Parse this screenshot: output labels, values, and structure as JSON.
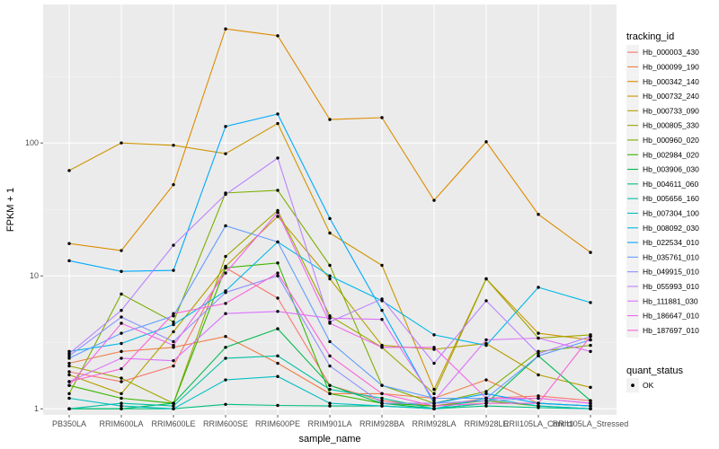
{
  "chart_data": {
    "type": "line",
    "xlabel": "sample_name",
    "ylabel": "FPKM + 1",
    "y_scale": "log10",
    "ylim": [
      0.9,
      1100
    ],
    "y_ticks": [
      1,
      10,
      100
    ],
    "y_tick_labels": [
      "1",
      "10",
      "100"
    ],
    "grid": true,
    "legend_position": "right",
    "categories": [
      "PB350LA",
      "RRIM600LA",
      "RRIM600LE",
      "RRIM600SE",
      "RRIM600PE",
      "RRIM901LA",
      "RRIM928BA",
      "RRIM928LA",
      "RRIM928LE",
      "RRII105LA_Control",
      "RRII105LA_Stressed"
    ],
    "legend_title": "tracking_id",
    "shape_legend_title": "quant_status",
    "shape_legend_items": [
      "OK"
    ],
    "series": [
      {
        "name": "Hb_000003_430",
        "color": "#F8766D",
        "values": [
          1.9,
          1.6,
          2.1,
          11.5,
          6.8,
          1.5,
          1.15,
          1.05,
          1.2,
          1.25,
          1.15
        ]
      },
      {
        "name": "Hb_000099_190",
        "color": "#EF7F49",
        "values": [
          2.2,
          2.7,
          2.9,
          3.5,
          2.2,
          1.3,
          1.3,
          1.2,
          1.65,
          1.1,
          1.05
        ]
      },
      {
        "name": "Hb_000342_140",
        "color": "#DE8C00",
        "values": [
          17.5,
          15.5,
          48.5,
          720,
          640,
          150,
          155,
          37,
          102,
          29,
          15
        ]
      },
      {
        "name": "Hb_000732_240",
        "color": "#CD9600",
        "values": [
          62,
          100,
          96,
          83,
          140,
          21,
          12,
          1.4,
          9.5,
          3.7,
          3.3
        ]
      },
      {
        "name": "Hb_000733_090",
        "color": "#B79F00",
        "values": [
          1.8,
          1.3,
          3.8,
          11.8,
          28,
          9.5,
          3.0,
          2.8,
          3.1,
          1.8,
          1.45
        ]
      },
      {
        "name": "Hb_000805_330",
        "color": "#9CA700",
        "values": [
          2.1,
          1.7,
          1.1,
          14,
          31,
          5.0,
          2.9,
          1.3,
          9.5,
          3.4,
          3.6
        ]
      },
      {
        "name": "Hb_000960_020",
        "color": "#7CAE00",
        "values": [
          1.3,
          7.3,
          4.5,
          42,
          44,
          12,
          1.5,
          1.1,
          1.35,
          2.7,
          3.0
        ]
      },
      {
        "name": "Hb_002984_020",
        "color": "#39B600",
        "values": [
          1.5,
          1.2,
          1.1,
          11.5,
          12.5,
          1.3,
          1.1,
          1.05,
          1.15,
          1.05,
          1.0
        ]
      },
      {
        "name": "Hb_003906_030",
        "color": "#00BB4E",
        "values": [
          1.0,
          1.0,
          1.1,
          2.9,
          4.0,
          1.5,
          1.1,
          1.0,
          1.1,
          2.5,
          1.15
        ]
      },
      {
        "name": "Hb_004611_060",
        "color": "#00BF7D",
        "values": [
          1.0,
          1.0,
          1.0,
          1.08,
          1.06,
          1.05,
          1.05,
          1.0,
          1.05,
          1.02,
          1.0
        ]
      },
      {
        "name": "Hb_005656_160",
        "color": "#00C1A3",
        "values": [
          1.0,
          1.1,
          1.05,
          2.4,
          2.5,
          1.4,
          1.2,
          1.0,
          1.1,
          1.1,
          1.05
        ]
      },
      {
        "name": "Hb_007304_100",
        "color": "#00BFC4",
        "values": [
          1.2,
          1.05,
          1.0,
          1.65,
          1.75,
          1.1,
          1.05,
          1.0,
          1.2,
          1.05,
          1.0
        ]
      },
      {
        "name": "Hb_008092_030",
        "color": "#00B8E7",
        "values": [
          2.7,
          3.1,
          4.3,
          7.7,
          18,
          10,
          6.5,
          3.6,
          3.0,
          8.2,
          6.3
        ]
      },
      {
        "name": "Hb_022534_010",
        "color": "#00A9FF",
        "values": [
          13,
          10.8,
          11,
          133,
          165,
          27,
          5.5,
          1.1,
          1.3,
          1.1,
          1.05
        ]
      },
      {
        "name": "Hb_035761_010",
        "color": "#619CFF",
        "values": [
          2.4,
          3.7,
          5.0,
          23.8,
          18,
          3.2,
          1.5,
          1.2,
          1.2,
          2.5,
          3.3
        ]
      },
      {
        "name": "Hb_049915_010",
        "color": "#8F91FF",
        "values": [
          2.5,
          4.9,
          3.2,
          7.5,
          10,
          2.1,
          1.1,
          1.1,
          1.15,
          1.2,
          1.1
        ]
      },
      {
        "name": "Hb_055993_010",
        "color": "#B983FF",
        "values": [
          2.6,
          5.5,
          17,
          41,
          77,
          4.5,
          6.7,
          2.2,
          6.5,
          2.6,
          3.5
        ]
      },
      {
        "name": "Hb_111881_030",
        "color": "#DB72FB",
        "values": [
          1.6,
          2.4,
          2.3,
          5.2,
          5.4,
          4.8,
          4.7,
          1.15,
          3.3,
          3.4,
          2.7
        ]
      },
      {
        "name": "Hb_186647_010",
        "color": "#F066EA",
        "values": [
          1.5,
          4.4,
          3.0,
          10.5,
          30,
          4.4,
          2.9,
          2.9,
          1.2,
          1.2,
          1.1
        ]
      },
      {
        "name": "Hb_187697_010",
        "color": "#FB61D7",
        "values": [
          1.6,
          2.0,
          5.2,
          6.2,
          10.5,
          2.5,
          1.3,
          1.05,
          1.1,
          1.1,
          3.5
        ]
      }
    ]
  }
}
